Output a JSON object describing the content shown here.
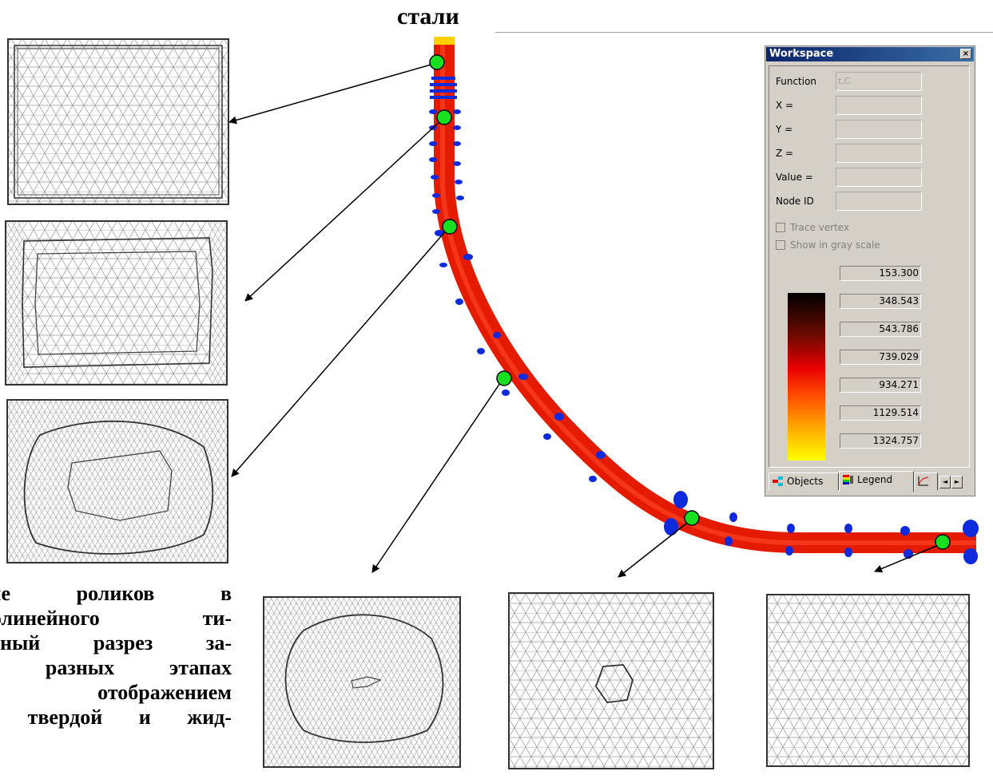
{
  "heading": "стали",
  "caption": {
    "lines": [
      "ение роликов в",
      "иволинейного ти-",
      "речный разрез за-",
      "на разных этапах",
      "с отображением",
      "ия твердой и жид-"
    ]
  },
  "workspace": {
    "title": "Workspace",
    "close_glyph": "×",
    "fields": [
      {
        "label": "Function",
        "value": "t,C"
      },
      {
        "label": "X =",
        "value": ""
      },
      {
        "label": "Y =",
        "value": ""
      },
      {
        "label": "Z =",
        "value": ""
      },
      {
        "label": "Value =",
        "value": ""
      },
      {
        "label": "Node ID",
        "value": ""
      }
    ],
    "checkboxes": [
      {
        "label": "Trace vertex",
        "checked": false
      },
      {
        "label": "Show in gray scale",
        "checked": false
      }
    ],
    "legend_values": [
      "153.300",
      "348.543",
      "543.786",
      "739.029",
      "934.271",
      "1129.514",
      "1324.757"
    ],
    "tabs": [
      {
        "label": "Objects",
        "icon": "objects-icon"
      },
      {
        "label": "Legend",
        "icon": "legend-icon"
      }
    ],
    "scroll_left_glyph": "◄",
    "scroll_right_glyph": "►"
  },
  "colors": {
    "strand": "#e51b00",
    "roller": "#0d2bdc",
    "marker": "#18e020"
  }
}
